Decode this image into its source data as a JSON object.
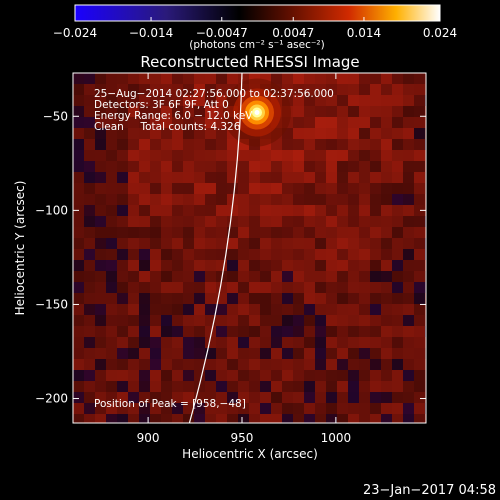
{
  "chart_data": {
    "type": "heatmap",
    "title": "Reconstructed RHESSI Image",
    "xlabel": "Heliocentric X (arcsec)",
    "ylabel": "Heliocentric Y (arcsec)",
    "xlim": [
      860,
      1048
    ],
    "ylim": [
      -213,
      -27
    ],
    "x_ticks": [
      900,
      950,
      1000
    ],
    "x_tick_labels": [
      "900",
      "950",
      "1000"
    ],
    "y_ticks": [
      -50,
      -100,
      -150,
      -200
    ],
    "y_tick_labels": [
      "−50",
      "−100",
      "−150",
      "−200"
    ],
    "colorbar": {
      "range": [
        -0.024,
        0.024
      ],
      "ticks": [
        -0.024,
        -0.014,
        -0.0047,
        0.0047,
        0.014,
        0.024
      ],
      "tick_labels": [
        "−0.024",
        "−0.014",
        "−0.0047",
        "0.0047",
        "0.014",
        "0.024"
      ],
      "unit_label": "(photons cm⁻² s⁻¹ asec⁻²)",
      "colormap": "RHESSI blue-black-red-yellow-white"
    },
    "peak": {
      "x": 958,
      "y": -48
    },
    "limb": {
      "x_top": 950,
      "x_bottom": 922
    },
    "annotations": [
      "25−Aug−2014 02:27:56.000 to 02:37:56.000",
      "Detectors: 3F 6F 9F, Att 0",
      "Energy Range: 6.0 − 12.0 keV",
      "Clean     Total counts: 4.326",
      "Position of Peak = [958,−48]"
    ]
  },
  "timestamp": "23−Jan−2017 04:58"
}
